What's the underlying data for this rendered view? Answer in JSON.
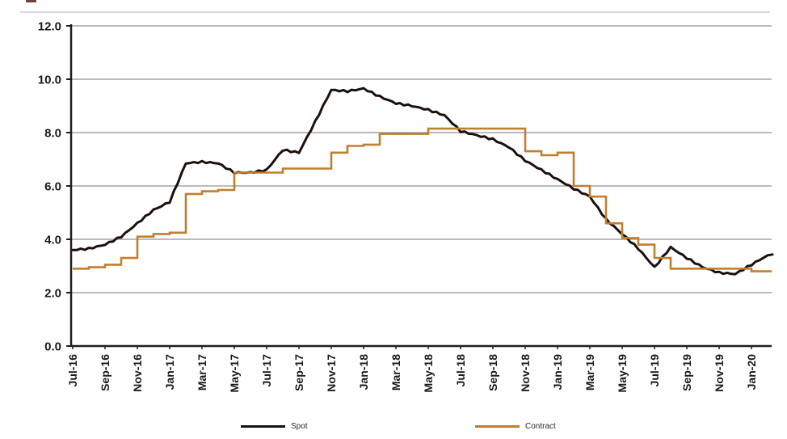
{
  "chart_data": {
    "type": "line",
    "title": "",
    "xlabel": "",
    "ylabel": "",
    "categories": [
      "Jul-16",
      "Aug-16",
      "Sep-16",
      "Oct-16",
      "Nov-16",
      "Dec-16",
      "Jan-17",
      "Feb-17",
      "Mar-17",
      "Apr-17",
      "May-17",
      "Jun-17",
      "Jul-17",
      "Aug-17",
      "Sep-17",
      "Oct-17",
      "Nov-17",
      "Dec-17",
      "Jan-18",
      "Feb-18",
      "Mar-18",
      "Apr-18",
      "May-18",
      "Jun-18",
      "Jul-18",
      "Aug-18",
      "Sep-18",
      "Oct-18",
      "Nov-18",
      "Dec-18",
      "Jan-19",
      "Feb-19",
      "Mar-19",
      "Apr-19",
      "May-19",
      "Jun-19",
      "Jul-19",
      "Aug-19",
      "Sep-19",
      "Oct-19",
      "Nov-19",
      "Dec-19",
      "Jan-20",
      "Feb-20"
    ],
    "x_tick_labels": [
      "Jul-16",
      "Sep-16",
      "Nov-16",
      "Jan-17",
      "Mar-17",
      "May-17",
      "Jul-17",
      "Sep-17",
      "Nov-17",
      "Jan-18",
      "Mar-18",
      "May-18",
      "Jul-18",
      "Sep-18",
      "Nov-18",
      "Jan-19",
      "Mar-19",
      "May-19",
      "Jul-19",
      "Sep-19",
      "Nov-19",
      "Jan-20"
    ],
    "x_label_rotation": -90,
    "ylim": [
      0,
      12
    ],
    "y_ticks": [
      0,
      2,
      4,
      6,
      8,
      10,
      12
    ],
    "y_tick_labels": [
      "0.0",
      "2.0",
      "4.0",
      "6.0",
      "8.0",
      "10.0",
      "12.0"
    ],
    "grid": true,
    "legend_position": "bottom",
    "series": [
      {
        "name": "Spot",
        "style": "line",
        "color": "#1c100c",
        "values": [
          3.6,
          3.65,
          3.8,
          4.1,
          4.6,
          5.1,
          5.4,
          6.85,
          6.9,
          6.85,
          6.5,
          6.5,
          6.6,
          7.35,
          7.25,
          8.4,
          9.6,
          9.55,
          9.65,
          9.35,
          9.1,
          9.0,
          8.85,
          8.65,
          8.05,
          7.9,
          7.75,
          7.45,
          6.95,
          6.6,
          6.25,
          5.9,
          5.6,
          4.75,
          4.2,
          3.65,
          2.95,
          3.7,
          3.3,
          2.95,
          2.75,
          2.7,
          3.05,
          3.4
        ]
      },
      {
        "name": "Contract",
        "style": "step",
        "color": "#c07f2f",
        "values": [
          2.9,
          2.95,
          3.05,
          3.3,
          4.1,
          4.2,
          4.25,
          5.7,
          5.8,
          5.85,
          6.5,
          6.5,
          6.5,
          6.65,
          6.65,
          6.65,
          7.25,
          7.5,
          7.55,
          7.95,
          7.95,
          7.95,
          8.15,
          8.15,
          8.15,
          8.15,
          8.15,
          8.15,
          7.3,
          7.15,
          7.25,
          6.0,
          5.6,
          4.6,
          4.05,
          3.8,
          3.3,
          2.9,
          2.9,
          2.9,
          2.9,
          2.9,
          2.8,
          2.8
        ]
      }
    ],
    "colors": {
      "grid": "#a3a3a3",
      "axis": "#1f1f1f",
      "tick_text": "#1a1a1a",
      "top_rule": "#d9d9d9"
    }
  }
}
